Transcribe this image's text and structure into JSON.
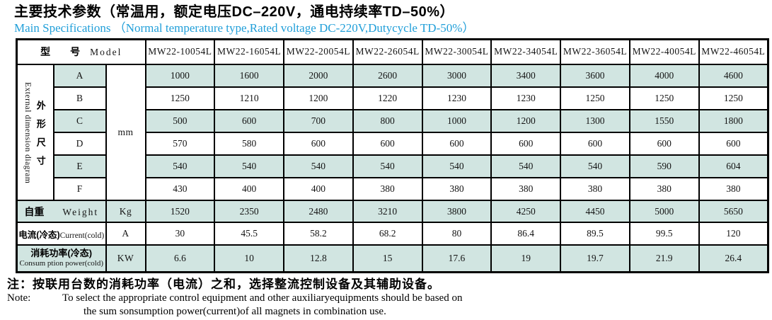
{
  "title": "主要技术参数（常温用，额定电压DC–220V，通电持续率TD–50%）",
  "subtitle": "Main Specifications （Normal temperature type,Rated voltage DC-220V,Dutycycle TD-50%）",
  "table": {
    "corner_header": {
      "zh_xing": "型",
      "zh_hao": "号",
      "en": "Model"
    },
    "models": [
      "MW22-10054L",
      "MW22-16054L",
      "MW22-20054L",
      "MW22-26054L",
      "MW22-30054L",
      "MW22-34054L",
      "MW22-36054L",
      "MW22-40054L",
      "MW22-46054L"
    ],
    "dimension_section": {
      "side_label_en": "External dimension diagram",
      "side_label_zh": "外形尺寸",
      "unit": "mm",
      "rows": [
        {
          "key": "A",
          "shaded": true,
          "values": [
            "1000",
            "1600",
            "2000",
            "2600",
            "3000",
            "3400",
            "3600",
            "4000",
            "4600"
          ]
        },
        {
          "key": "B",
          "shaded": false,
          "values": [
            "1250",
            "1210",
            "1200",
            "1220",
            "1230",
            "1230",
            "1250",
            "1250",
            "1250"
          ]
        },
        {
          "key": "C",
          "shaded": true,
          "values": [
            "500",
            "600",
            "700",
            "800",
            "1000",
            "1200",
            "1300",
            "1550",
            "1800"
          ]
        },
        {
          "key": "D",
          "shaded": false,
          "values": [
            "570",
            "580",
            "600",
            "600",
            "600",
            "600",
            "600",
            "600",
            "600"
          ]
        },
        {
          "key": "E",
          "shaded": true,
          "values": [
            "540",
            "540",
            "540",
            "540",
            "540",
            "540",
            "540",
            "590",
            "604"
          ]
        },
        {
          "key": "F",
          "shaded": false,
          "values": [
            "430",
            "400",
            "400",
            "380",
            "380",
            "380",
            "380",
            "380",
            "380"
          ]
        }
      ]
    },
    "summary_rows": [
      {
        "name": "weight-row",
        "label_zh": "自重",
        "label_en": "Weight",
        "label_en2": "",
        "unit": "Kg",
        "shaded": true,
        "values": [
          "1520",
          "2350",
          "2480",
          "3210",
          "3800",
          "4250",
          "4450",
          "5000",
          "5650"
        ]
      },
      {
        "name": "current-row",
        "label_zh": "电流(冷态)",
        "label_en": "Current(cold)",
        "label_en2": "",
        "unit": "A",
        "shaded": false,
        "values": [
          "30",
          "45.5",
          "58.2",
          "68.2",
          "80",
          "86.4",
          "89.5",
          "99.5",
          "120"
        ]
      },
      {
        "name": "power-row",
        "label_zh": "消耗功率(冷态)",
        "label_en": "",
        "label_en2": "Consum ption power(cold)",
        "unit": "KW",
        "shaded": true,
        "values": [
          "6.6",
          "10",
          "12.8",
          "15",
          "17.6",
          "19",
          "19.7",
          "21.9",
          "26.4"
        ]
      }
    ]
  },
  "notes": {
    "zh": "注：按联用台数的消耗功率（电流）之和，选择整流控制设备及其辅助设备。",
    "en_label": "Note:",
    "en_line1": "To select the appropriate control equipment and other auxiliaryequipments should be based on",
    "en_line2": "the sum sonsumption power(current)of all magnets in combination use."
  },
  "colors": {
    "shaded_cell": "#d1e5e1",
    "subtitle": "#219fd9",
    "border": "#000000"
  }
}
